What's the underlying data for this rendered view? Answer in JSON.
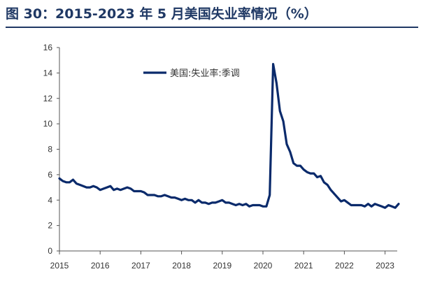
{
  "figure": {
    "title": "图 30：2015-2023 年 5 月美国失业率情况（%）"
  },
  "chart_data": {
    "type": "line",
    "title": "",
    "xlabel": "",
    "ylabel": "",
    "ylim": [
      0,
      16
    ],
    "yticks": [
      "0",
      "2",
      "4",
      "6",
      "8",
      "10",
      "12",
      "14",
      "16"
    ],
    "xticks": [
      "2015",
      "2016",
      "2017",
      "2018",
      "2019",
      "2020",
      "2021",
      "2022",
      "2023"
    ],
    "x_start": "2015-01",
    "x_frequency": "monthly",
    "grid": false,
    "legend_position": "top-center",
    "series": [
      {
        "name": "美国:失业率:季调",
        "color": "#0a2a6b",
        "x": [
          "2015-01",
          "2015-02",
          "2015-03",
          "2015-04",
          "2015-05",
          "2015-06",
          "2015-07",
          "2015-08",
          "2015-09",
          "2015-10",
          "2015-11",
          "2015-12",
          "2016-01",
          "2016-02",
          "2016-03",
          "2016-04",
          "2016-05",
          "2016-06",
          "2016-07",
          "2016-08",
          "2016-09",
          "2016-10",
          "2016-11",
          "2016-12",
          "2017-01",
          "2017-02",
          "2017-03",
          "2017-04",
          "2017-05",
          "2017-06",
          "2017-07",
          "2017-08",
          "2017-09",
          "2017-10",
          "2017-11",
          "2017-12",
          "2018-01",
          "2018-02",
          "2018-03",
          "2018-04",
          "2018-05",
          "2018-06",
          "2018-07",
          "2018-08",
          "2018-09",
          "2018-10",
          "2018-11",
          "2018-12",
          "2019-01",
          "2019-02",
          "2019-03",
          "2019-04",
          "2019-05",
          "2019-06",
          "2019-07",
          "2019-08",
          "2019-09",
          "2019-10",
          "2019-11",
          "2019-12",
          "2020-01",
          "2020-02",
          "2020-03",
          "2020-04",
          "2020-05",
          "2020-06",
          "2020-07",
          "2020-08",
          "2020-09",
          "2020-10",
          "2020-11",
          "2020-12",
          "2021-01",
          "2021-02",
          "2021-03",
          "2021-04",
          "2021-05",
          "2021-06",
          "2021-07",
          "2021-08",
          "2021-09",
          "2021-10",
          "2021-11",
          "2021-12",
          "2022-01",
          "2022-02",
          "2022-03",
          "2022-04",
          "2022-05",
          "2022-06",
          "2022-07",
          "2022-08",
          "2022-09",
          "2022-10",
          "2022-11",
          "2022-12",
          "2023-01",
          "2023-02",
          "2023-03",
          "2023-04",
          "2023-05"
        ],
        "values": [
          5.7,
          5.5,
          5.4,
          5.4,
          5.6,
          5.3,
          5.2,
          5.1,
          5.0,
          5.0,
          5.1,
          5.0,
          4.8,
          4.9,
          5.0,
          5.1,
          4.8,
          4.9,
          4.8,
          4.9,
          5.0,
          4.9,
          4.7,
          4.7,
          4.7,
          4.6,
          4.4,
          4.4,
          4.4,
          4.3,
          4.3,
          4.4,
          4.3,
          4.2,
          4.2,
          4.1,
          4.0,
          4.1,
          4.0,
          4.0,
          3.8,
          4.0,
          3.8,
          3.8,
          3.7,
          3.8,
          3.8,
          3.9,
          4.0,
          3.8,
          3.8,
          3.7,
          3.6,
          3.7,
          3.6,
          3.7,
          3.5,
          3.6,
          3.6,
          3.6,
          3.5,
          3.5,
          4.4,
          14.7,
          13.2,
          11.0,
          10.2,
          8.4,
          7.8,
          6.9,
          6.7,
          6.7,
          6.4,
          6.2,
          6.1,
          6.1,
          5.8,
          5.9,
          5.4,
          5.2,
          4.8,
          4.5,
          4.2,
          3.9,
          4.0,
          3.8,
          3.6,
          3.6,
          3.6,
          3.6,
          3.5,
          3.7,
          3.5,
          3.7,
          3.6,
          3.5,
          3.4,
          3.6,
          3.5,
          3.4,
          3.7
        ]
      }
    ]
  }
}
